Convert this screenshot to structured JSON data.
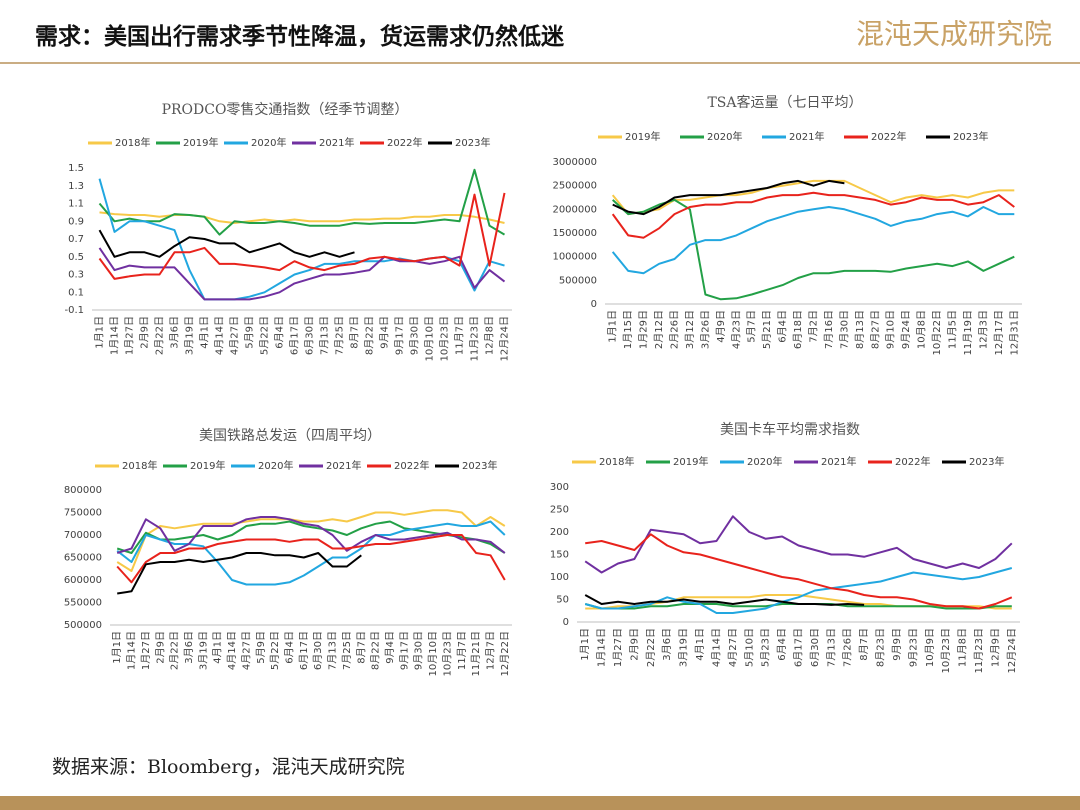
{
  "header": {
    "title": "需求：美国出行需求季节性降温，货运需求仍然低迷",
    "logo": "混沌天成研究院"
  },
  "source": "数据来源：Bloomberg，混沌天成研究院",
  "chart_data": [
    {
      "type": "line",
      "title": "PRODCO零售交通指数（经季节调整）",
      "categories": [
        "1月1日",
        "1月14日",
        "1月27日",
        "2月9日",
        "2月22日",
        "3月6日",
        "3月19日",
        "4月1日",
        "4月14日",
        "4月27日",
        "5月9日",
        "5月22日",
        "6月4日",
        "6月17日",
        "6月30日",
        "7月13日",
        "7月25日",
        "8月7日",
        "8月22日",
        "9月4日",
        "9月17日",
        "9月30日",
        "10月10日",
        "10月23日",
        "11月7日",
        "11月23日",
        "12月8日",
        "12月24日"
      ],
      "ylim": [
        -0.1,
        1.5
      ],
      "yticks": [
        -0.1,
        0.1,
        0.3,
        0.5,
        0.7,
        0.9,
        1.1,
        1.3,
        1.5
      ],
      "series": [
        {
          "name": "2018年",
          "color": "#f7c948",
          "values": [
            1.0,
            0.98,
            0.97,
            0.97,
            0.95,
            0.97,
            0.97,
            0.95,
            0.9,
            0.88,
            0.9,
            0.92,
            0.9,
            0.92,
            0.9,
            0.9,
            0.9,
            0.92,
            0.92,
            0.93,
            0.93,
            0.95,
            0.95,
            0.97,
            0.97,
            0.95,
            0.92,
            0.88
          ]
        },
        {
          "name": "2019年",
          "color": "#23a047",
          "values": [
            1.1,
            0.9,
            0.93,
            0.9,
            0.9,
            0.98,
            0.97,
            0.95,
            0.75,
            0.9,
            0.88,
            0.88,
            0.9,
            0.88,
            0.85,
            0.85,
            0.85,
            0.88,
            0.87,
            0.88,
            0.88,
            0.88,
            0.9,
            0.92,
            0.9,
            1.48,
            0.85,
            0.75
          ]
        },
        {
          "name": "2020年",
          "color": "#22a7e0",
          "values": [
            1.38,
            0.78,
            0.9,
            0.9,
            0.85,
            0.8,
            0.35,
            0.02,
            0.02,
            0.02,
            0.05,
            0.1,
            0.2,
            0.3,
            0.35,
            0.42,
            0.42,
            0.45,
            0.45,
            0.45,
            0.48,
            0.45,
            0.48,
            0.5,
            0.45,
            0.12,
            0.45,
            0.4
          ]
        },
        {
          "name": "2021年",
          "color": "#7030a0",
          "values": [
            0.6,
            0.35,
            0.4,
            0.38,
            0.38,
            0.38,
            0.2,
            0.02,
            0.02,
            0.02,
            0.02,
            0.05,
            0.1,
            0.2,
            0.25,
            0.3,
            0.3,
            0.32,
            0.35,
            0.5,
            0.45,
            0.45,
            0.42,
            0.45,
            0.5,
            0.15,
            0.35,
            0.22
          ]
        },
        {
          "name": "2022年",
          "color": "#e8231c",
          "values": [
            0.48,
            0.25,
            0.28,
            0.3,
            0.3,
            0.55,
            0.55,
            0.6,
            0.42,
            0.42,
            0.4,
            0.38,
            0.35,
            0.45,
            0.38,
            0.35,
            0.4,
            0.42,
            0.48,
            0.5,
            0.47,
            0.45,
            0.48,
            0.5,
            0.4,
            1.2,
            0.4,
            1.22
          ]
        },
        {
          "name": "2023年",
          "color": "#000000",
          "values": [
            0.8,
            0.5,
            0.55,
            0.55,
            0.5,
            0.62,
            0.72,
            0.7,
            0.65,
            0.65,
            0.55,
            0.6,
            0.65,
            0.55,
            0.5,
            0.55,
            0.5,
            0.55,
            null,
            null,
            null,
            null,
            null,
            null,
            null,
            null,
            null,
            null
          ]
        }
      ]
    },
    {
      "type": "line",
      "title": "TSA客运量（七日平均）",
      "categories": [
        "1月1日",
        "1月15日",
        "1月29日",
        "2月12日",
        "2月26日",
        "3月12日",
        "3月26日",
        "4月9日",
        "4月23日",
        "5月7日",
        "5月21日",
        "6月4日",
        "6月18日",
        "7月2日",
        "7月16日",
        "7月30日",
        "8月13日",
        "8月27日",
        "9月10日",
        "9月24日",
        "10月8日",
        "10月22日",
        "11月5日",
        "11月19日",
        "12月3日",
        "12月17日",
        "12月31日"
      ],
      "ylim": [
        0,
        3000000
      ],
      "yticks": [
        0,
        500000,
        1000000,
        1500000,
        2000000,
        2500000,
        3000000
      ],
      "series": [
        {
          "name": "2019年",
          "color": "#f7c948",
          "values": [
            2300000,
            1900000,
            1950000,
            2000000,
            2200000,
            2200000,
            2250000,
            2300000,
            2300000,
            2350000,
            2450000,
            2500000,
            2550000,
            2600000,
            2600000,
            2600000,
            2450000,
            2300000,
            2150000,
            2250000,
            2300000,
            2250000,
            2300000,
            2250000,
            2350000,
            2400000,
            2400000
          ]
        },
        {
          "name": "2020年",
          "color": "#23a047",
          "values": [
            2200000,
            1900000,
            1950000,
            2100000,
            2200000,
            2000000,
            200000,
            100000,
            120000,
            200000,
            300000,
            400000,
            550000,
            650000,
            650000,
            700000,
            700000,
            700000,
            680000,
            750000,
            800000,
            850000,
            800000,
            900000,
            700000,
            850000,
            1000000
          ]
        },
        {
          "name": "2021年",
          "color": "#22a7e0",
          "values": [
            1100000,
            700000,
            650000,
            850000,
            950000,
            1250000,
            1350000,
            1350000,
            1450000,
            1600000,
            1750000,
            1850000,
            1950000,
            2000000,
            2050000,
            2000000,
            1900000,
            1800000,
            1650000,
            1750000,
            1800000,
            1900000,
            1950000,
            1850000,
            2050000,
            1900000,
            1900000
          ]
        },
        {
          "name": "2022年",
          "color": "#e8231c",
          "values": [
            1900000,
            1450000,
            1400000,
            1600000,
            1900000,
            2050000,
            2100000,
            2100000,
            2150000,
            2150000,
            2250000,
            2300000,
            2300000,
            2350000,
            2300000,
            2300000,
            2250000,
            2200000,
            2100000,
            2150000,
            2250000,
            2200000,
            2200000,
            2100000,
            2150000,
            2300000,
            2050000
          ]
        },
        {
          "name": "2023年",
          "color": "#000000",
          "values": [
            2100000,
            1950000,
            1900000,
            2050000,
            2250000,
            2300000,
            2300000,
            2300000,
            2350000,
            2400000,
            2450000,
            2550000,
            2600000,
            2500000,
            2600000,
            2550000,
            null,
            null,
            null,
            null,
            null,
            null,
            null,
            null,
            null,
            null,
            null
          ]
        }
      ]
    },
    {
      "type": "line",
      "title": "美国铁路总发运（四周平均）",
      "categories": [
        "1月1日",
        "1月14日",
        "1月27日",
        "2月9日",
        "2月22日",
        "3月6日",
        "3月19日",
        "4月1日",
        "4月14日",
        "4月27日",
        "5月9日",
        "5月22日",
        "6月4日",
        "6月17日",
        "6月30日",
        "7月13日",
        "7月25日",
        "8月7日",
        "8月22日",
        "9月4日",
        "9月17日",
        "9月30日",
        "10月10日",
        "10月23日",
        "11月7日",
        "11月21日",
        "12月7日",
        "12月22日"
      ],
      "ylim": [
        500000,
        800000
      ],
      "yticks": [
        500000,
        550000,
        600000,
        650000,
        700000,
        750000,
        800000
      ],
      "series": [
        {
          "name": "2018年",
          "color": "#f7c948",
          "values": [
            640000,
            620000,
            700000,
            720000,
            715000,
            720000,
            725000,
            725000,
            725000,
            730000,
            735000,
            735000,
            735000,
            730000,
            730000,
            735000,
            730000,
            740000,
            750000,
            750000,
            745000,
            750000,
            755000,
            755000,
            750000,
            720000,
            740000,
            720000
          ]
        },
        {
          "name": "2019年",
          "color": "#23a047",
          "values": [
            670000,
            660000,
            705000,
            690000,
            690000,
            695000,
            700000,
            690000,
            700000,
            720000,
            725000,
            725000,
            730000,
            720000,
            715000,
            710000,
            700000,
            715000,
            725000,
            730000,
            715000,
            710000,
            705000,
            700000,
            695000,
            690000,
            680000,
            660000
          ]
        },
        {
          "name": "2020年",
          "color": "#22a7e0",
          "values": [
            665000,
            640000,
            700000,
            690000,
            680000,
            680000,
            675000,
            640000,
            600000,
            590000,
            590000,
            590000,
            595000,
            610000,
            630000,
            650000,
            650000,
            670000,
            700000,
            700000,
            710000,
            715000,
            720000,
            725000,
            720000,
            720000,
            730000,
            700000
          ]
        },
        {
          "name": "2021年",
          "color": "#7030a0",
          "values": [
            660000,
            670000,
            735000,
            715000,
            665000,
            680000,
            720000,
            720000,
            720000,
            735000,
            740000,
            740000,
            735000,
            725000,
            720000,
            700000,
            665000,
            685000,
            700000,
            690000,
            690000,
            695000,
            700000,
            705000,
            690000,
            690000,
            685000,
            660000
          ]
        },
        {
          "name": "2022年",
          "color": "#e8231c",
          "values": [
            630000,
            595000,
            640000,
            660000,
            660000,
            670000,
            670000,
            680000,
            685000,
            690000,
            690000,
            690000,
            685000,
            690000,
            690000,
            670000,
            670000,
            675000,
            680000,
            680000,
            685000,
            690000,
            695000,
            700000,
            700000,
            660000,
            655000,
            600000
          ]
        },
        {
          "name": "2023年",
          "color": "#000000",
          "values": [
            570000,
            575000,
            635000,
            640000,
            640000,
            645000,
            640000,
            645000,
            650000,
            660000,
            660000,
            655000,
            655000,
            650000,
            660000,
            630000,
            630000,
            655000,
            null,
            null,
            null,
            null,
            null,
            null,
            null,
            null,
            null,
            null
          ]
        }
      ]
    },
    {
      "type": "line",
      "title": "美国卡车平均需求指数",
      "categories": [
        "1月1日",
        "1月14日",
        "1月27日",
        "2月9日",
        "2月22日",
        "3月6日",
        "3月19日",
        "4月1日",
        "4月14日",
        "4月27日",
        "5月10日",
        "5月23日",
        "6月4日",
        "6月17日",
        "6月30日",
        "7月13日",
        "7月26日",
        "8月7日",
        "8月23日",
        "9月9日",
        "9月23日",
        "10月9日",
        "10月23日",
        "11月8日",
        "11月23日",
        "12月9日",
        "12月24日"
      ],
      "ylim": [
        0,
        300
      ],
      "yticks": [
        0,
        50,
        100,
        150,
        200,
        250,
        300
      ],
      "series": [
        {
          "name": "2018年",
          "color": "#f7c948",
          "values": [
            30,
            30,
            35,
            35,
            40,
            45,
            55,
            55,
            55,
            55,
            55,
            60,
            60,
            60,
            55,
            50,
            45,
            40,
            40,
            35,
            35,
            35,
            35,
            35,
            35,
            30,
            30
          ]
        },
        {
          "name": "2019年",
          "color": "#23a047",
          "values": [
            40,
            30,
            30,
            30,
            35,
            35,
            40,
            40,
            40,
            35,
            35,
            35,
            40,
            40,
            40,
            40,
            35,
            35,
            35,
            35,
            35,
            35,
            30,
            30,
            30,
            35,
            35
          ]
        },
        {
          "name": "2020年",
          "color": "#22a7e0",
          "values": [
            40,
            30,
            30,
            35,
            40,
            55,
            45,
            40,
            20,
            20,
            25,
            30,
            45,
            55,
            70,
            75,
            80,
            85,
            90,
            100,
            110,
            105,
            100,
            95,
            100,
            110,
            120
          ]
        },
        {
          "name": "2021年",
          "color": "#7030a0",
          "values": [
            135,
            110,
            130,
            140,
            205,
            200,
            195,
            175,
            180,
            235,
            200,
            185,
            190,
            170,
            160,
            150,
            150,
            145,
            155,
            165,
            140,
            130,
            120,
            130,
            120,
            140,
            175
          ]
        },
        {
          "name": "2022年",
          "color": "#e8231c",
          "values": [
            175,
            180,
            170,
            160,
            195,
            170,
            155,
            150,
            140,
            130,
            120,
            110,
            100,
            95,
            85,
            75,
            70,
            60,
            55,
            55,
            50,
            40,
            35,
            35,
            30,
            40,
            55
          ]
        },
        {
          "name": "2023年",
          "color": "#000000",
          "values": [
            60,
            40,
            45,
            40,
            45,
            45,
            50,
            45,
            45,
            40,
            45,
            50,
            45,
            40,
            40,
            38,
            40,
            38,
            null,
            null,
            null,
            null,
            null,
            null,
            null,
            null,
            null
          ]
        }
      ]
    }
  ]
}
